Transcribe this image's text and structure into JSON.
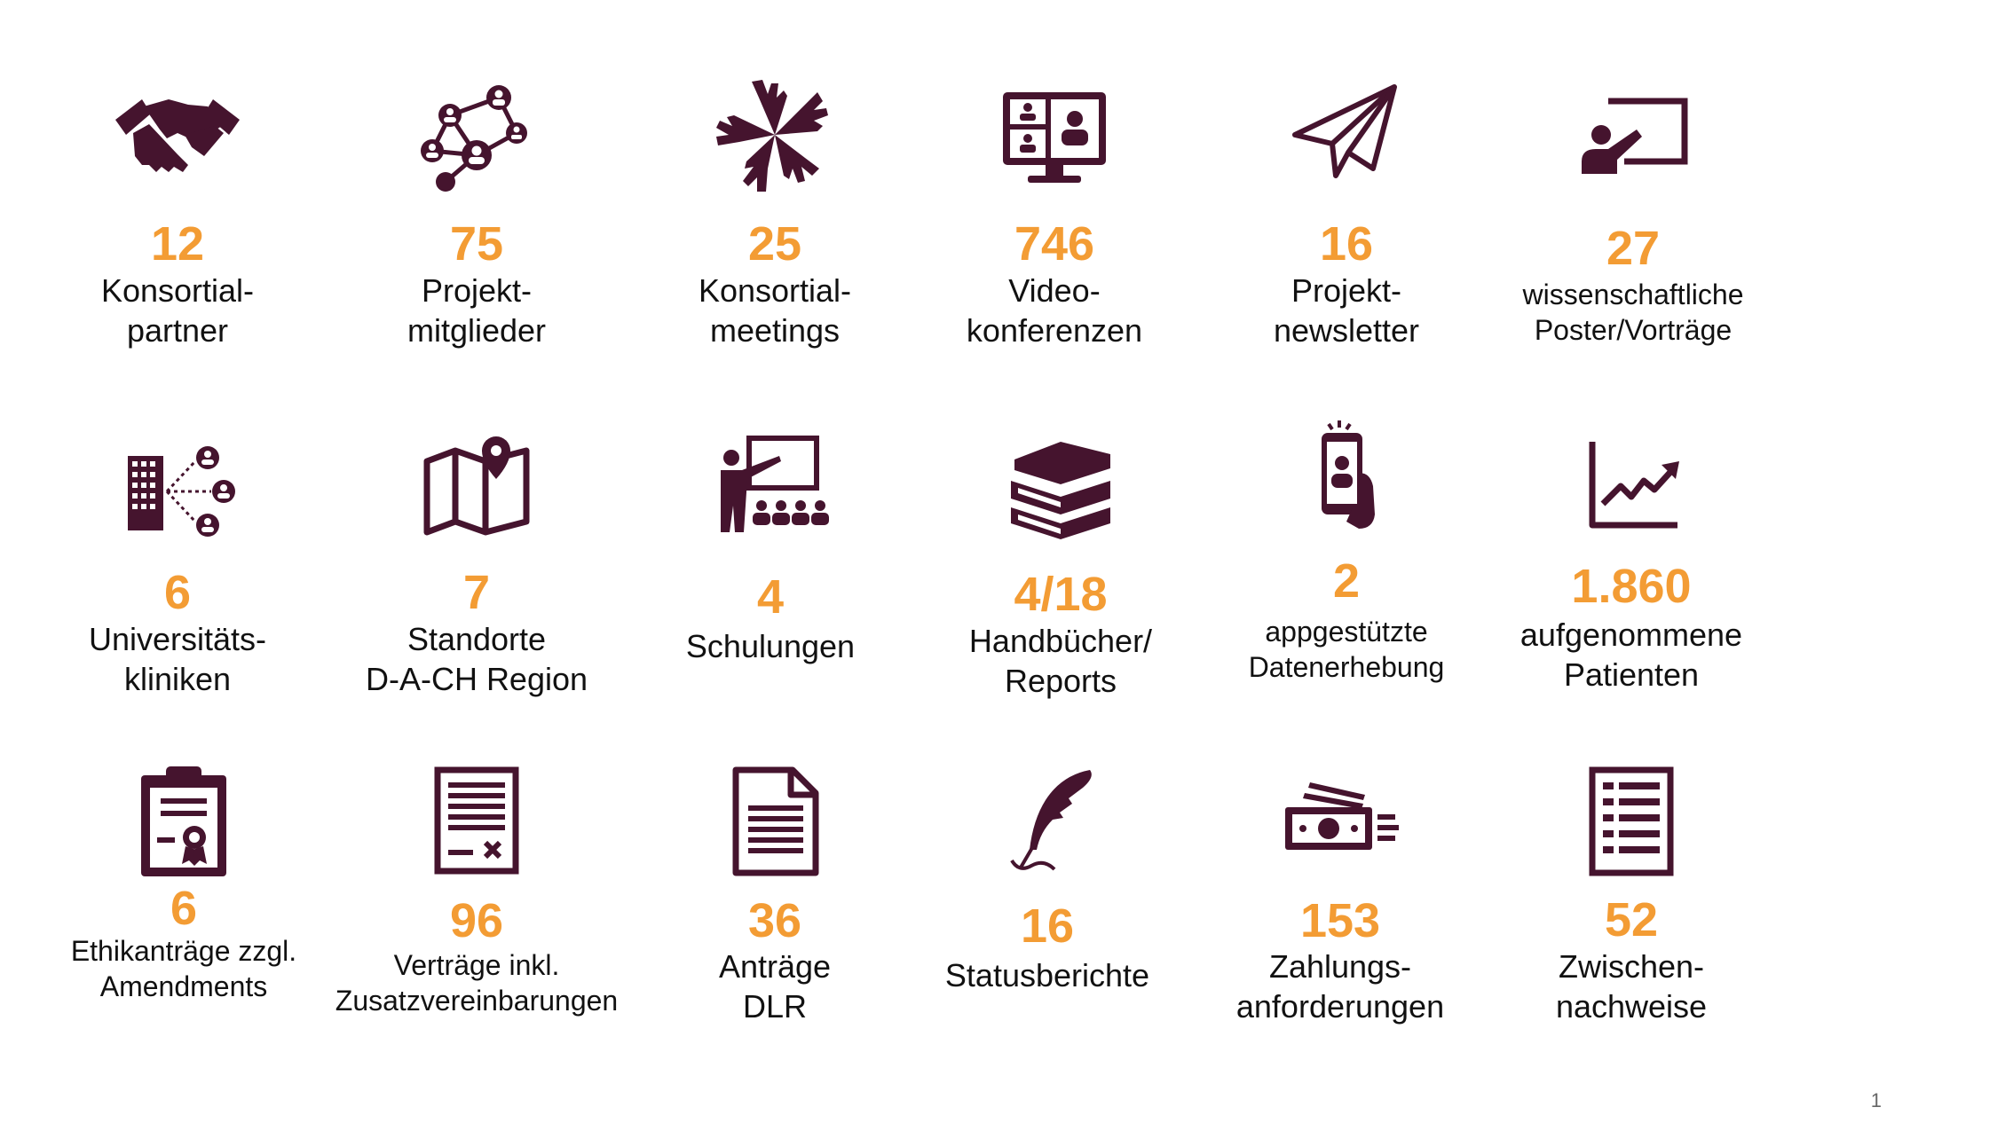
{
  "tiles": [
    {
      "icon": "handshake-icon",
      "value": "12",
      "label": [
        "Konsortial-",
        "partner"
      ]
    },
    {
      "icon": "network-people-icon",
      "value": "75",
      "label": [
        "Projekt-",
        "mitglieder"
      ]
    },
    {
      "icon": "hands-together-icon",
      "value": "25",
      "label": [
        "Konsortial-",
        "meetings"
      ]
    },
    {
      "icon": "video-conference-icon",
      "value": "746",
      "label": [
        "Video-",
        "konferenzen"
      ]
    },
    {
      "icon": "paper-plane-icon",
      "value": "16",
      "label": [
        "Projekt-",
        "newsletter"
      ]
    },
    {
      "icon": "presenter-board-icon",
      "value": "27",
      "label": [
        "wissenschaftliche",
        "Poster/Vorträge"
      ]
    },
    {
      "icon": "hospital-network-icon",
      "value": "6",
      "label": [
        "Universitäts-",
        "kliniken"
      ]
    },
    {
      "icon": "map-pin-icon",
      "value": "7",
      "label": [
        "Standorte",
        "D-A-CH Region"
      ]
    },
    {
      "icon": "training-class-icon",
      "value": "4",
      "label": [
        "Schulungen"
      ]
    },
    {
      "icon": "book-stack-icon",
      "value": "4/18",
      "label": [
        "Handbücher/",
        "Reports"
      ]
    },
    {
      "icon": "smartphone-user-icon",
      "value": "2",
      "label": [
        "appgestützte",
        "Datenerhebung"
      ]
    },
    {
      "icon": "line-chart-up-icon",
      "value": "1.860",
      "label": [
        "aufgenommene",
        "Patienten"
      ]
    },
    {
      "icon": "clipboard-certificate-icon",
      "value": "6",
      "label": [
        "Ethikanträge zzgl.",
        "Amendments"
      ]
    },
    {
      "icon": "contract-document-icon",
      "value": "96",
      "label": [
        "Verträge inkl.",
        "Zusatzvereinbarungen"
      ]
    },
    {
      "icon": "document-icon",
      "value": "36",
      "label": [
        "Anträge",
        "DLR"
      ]
    },
    {
      "icon": "quill-feather-icon",
      "value": "16",
      "label": [
        "Statusberichte"
      ]
    },
    {
      "icon": "money-transfer-icon",
      "value": "153",
      "label": [
        "Zahlungs-",
        "anforderungen"
      ]
    },
    {
      "icon": "checklist-icon",
      "value": "52",
      "label": [
        "Zwischen-",
        "nachweise"
      ]
    }
  ],
  "page_number": "1",
  "colors": {
    "icon": "#45142e",
    "number": "#f39c34",
    "text": "#111111"
  }
}
